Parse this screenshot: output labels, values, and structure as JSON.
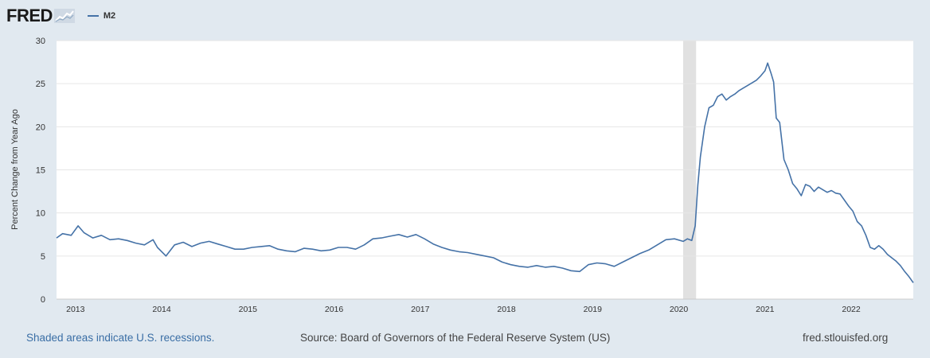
{
  "header": {
    "logo_text": "FRED",
    "legend_label": "M2"
  },
  "colors": {
    "series": "#4572a7",
    "recession": "#e1e1e1",
    "background": "#e1e9f0"
  },
  "footer": {
    "note": "Shaded areas indicate U.S. recessions.",
    "source": "Source: Board of Governors of the Federal Reserve System (US)",
    "url": "fred.stlouisfed.org"
  },
  "chart_data": {
    "type": "line",
    "ylabel": "Percent Change from Year Ago",
    "ylim": [
      0,
      30
    ],
    "yticks": [
      0,
      5,
      10,
      15,
      20,
      25,
      30
    ],
    "xlim": [
      2012.83,
      2022.77
    ],
    "xticks": [
      "2013",
      "2014",
      "2015",
      "2016",
      "2017",
      "2018",
      "2019",
      "2020",
      "2021",
      "2022"
    ],
    "grid": true,
    "recessions": [
      [
        2020.1,
        2020.25
      ]
    ],
    "series": [
      {
        "name": "M2",
        "x": [
          2012.83,
          2012.9,
          2013.0,
          2013.08,
          2013.15,
          2013.25,
          2013.35,
          2013.45,
          2013.55,
          2013.65,
          2013.75,
          2013.85,
          2013.95,
          2014.0,
          2014.1,
          2014.2,
          2014.3,
          2014.4,
          2014.5,
          2014.6,
          2014.7,
          2014.8,
          2014.9,
          2015.0,
          2015.1,
          2015.2,
          2015.3,
          2015.4,
          2015.5,
          2015.6,
          2015.7,
          2015.8,
          2015.9,
          2016.0,
          2016.1,
          2016.2,
          2016.3,
          2016.4,
          2016.5,
          2016.6,
          2016.7,
          2016.8,
          2016.9,
          2017.0,
          2017.1,
          2017.2,
          2017.3,
          2017.4,
          2017.5,
          2017.6,
          2017.7,
          2017.8,
          2017.9,
          2018.0,
          2018.1,
          2018.2,
          2018.3,
          2018.4,
          2018.5,
          2018.6,
          2018.7,
          2018.8,
          2018.9,
          2019.0,
          2019.1,
          2019.2,
          2019.3,
          2019.4,
          2019.5,
          2019.6,
          2019.7,
          2019.8,
          2019.9,
          2020.0,
          2020.1,
          2020.15,
          2020.2,
          2020.24,
          2020.27,
          2020.3,
          2020.35,
          2020.4,
          2020.45,
          2020.5,
          2020.55,
          2020.6,
          2020.65,
          2020.7,
          2020.75,
          2020.8,
          2020.85,
          2020.9,
          2020.95,
          2021.0,
          2021.05,
          2021.08,
          2021.12,
          2021.15,
          2021.18,
          2021.22,
          2021.27,
          2021.32,
          2021.37,
          2021.42,
          2021.47,
          2021.52,
          2021.57,
          2021.62,
          2021.67,
          2021.72,
          2021.77,
          2021.82,
          2021.87,
          2021.92,
          2021.97,
          2022.02,
          2022.07,
          2022.12,
          2022.17,
          2022.22,
          2022.27,
          2022.32,
          2022.37,
          2022.42,
          2022.47,
          2022.52,
          2022.57,
          2022.62,
          2022.67,
          2022.72,
          2022.77
        ],
        "values": [
          7.1,
          7.6,
          7.4,
          8.5,
          7.7,
          7.1,
          7.4,
          6.9,
          7.0,
          6.8,
          6.5,
          6.3,
          6.9,
          6.0,
          5.0,
          6.3,
          6.6,
          6.1,
          6.5,
          6.7,
          6.4,
          6.1,
          5.8,
          5.8,
          6.0,
          6.1,
          6.2,
          5.8,
          5.6,
          5.5,
          5.9,
          5.8,
          5.6,
          5.7,
          6.0,
          6.0,
          5.8,
          6.3,
          7.0,
          7.1,
          7.3,
          7.5,
          7.2,
          7.5,
          7.0,
          6.4,
          6.0,
          5.7,
          5.5,
          5.4,
          5.2,
          5.0,
          4.8,
          4.3,
          4.0,
          3.8,
          3.7,
          3.9,
          3.7,
          3.8,
          3.6,
          3.3,
          3.2,
          4.0,
          4.2,
          4.1,
          3.8,
          4.3,
          4.8,
          5.3,
          5.7,
          6.3,
          6.9,
          7.0,
          6.7,
          7.0,
          6.8,
          8.5,
          13.2,
          16.5,
          20.0,
          22.2,
          22.5,
          23.5,
          23.8,
          23.1,
          23.5,
          23.8,
          24.2,
          24.5,
          24.8,
          25.1,
          25.4,
          25.9,
          26.5,
          27.4,
          26.2,
          25.2,
          21.0,
          20.5,
          16.2,
          15.0,
          13.4,
          12.8,
          12.0,
          13.3,
          13.1,
          12.5,
          13.0,
          12.7,
          12.4,
          12.6,
          12.3,
          12.2,
          11.5,
          10.8,
          10.2,
          9.0,
          8.5,
          7.4,
          6.0,
          5.8,
          6.2,
          5.8,
          5.2,
          4.8,
          4.4,
          3.9,
          3.2,
          2.6,
          1.9
        ]
      }
    ]
  }
}
